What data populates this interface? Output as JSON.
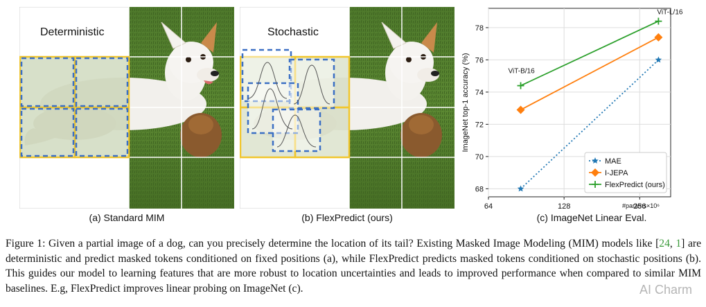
{
  "panel_a": {
    "heading": "Deterministic",
    "caption": "(a) Standard MIM"
  },
  "panel_b": {
    "heading": "Stochastic",
    "caption": "(b) FlexPredict (ours)"
  },
  "panel_c": {
    "caption": "(c) ImageNet Linear Eval."
  },
  "chart_data": {
    "type": "line",
    "ylabel": "ImageNet top-1 accuracy (%)",
    "xlabel": "#params×10⁶",
    "x_ticks": [
      "64",
      "128",
      "256"
    ],
    "x_tick_values": [
      64,
      128,
      256
    ],
    "x_scale": "log",
    "xlim": [
      64,
      340
    ],
    "y_ticks": [
      "68",
      "70",
      "72",
      "74",
      "76",
      "78"
    ],
    "ylim": [
      67.5,
      79.2
    ],
    "grid": true,
    "legend_position": "lower-right",
    "annotations": [
      "ViT-B/16",
      "ViT-L/16"
    ],
    "series": [
      {
        "name": "MAE",
        "color": "#1f77b4",
        "style": "dotted",
        "marker": "star",
        "x": [
          86,
          304
        ],
        "y": [
          68.0,
          76.0
        ]
      },
      {
        "name": "I-JEPA",
        "color": "#ff7f0e",
        "style": "solid",
        "marker": "diamond",
        "x": [
          86,
          304
        ],
        "y": [
          72.9,
          77.4
        ]
      },
      {
        "name": "FlexPredict (ours)",
        "color": "#2ca02c",
        "style": "solid",
        "marker": "plus",
        "x": [
          86,
          304
        ],
        "y": [
          74.4,
          78.4
        ]
      }
    ]
  },
  "figure_caption": {
    "prefix": "Figure 1:",
    "text_1": "Given a partial image of a dog, can you precisely determine the location of its tail? Existing Masked Image Modeling (MIM) models like [",
    "ref_a": "24",
    "ref_sep": ", ",
    "ref_b": "1",
    "text_2": "] are deterministic and predict masked tokens conditioned on fixed positions (a), while FlexPredict predicts masked tokens conditioned on stochastic positions (b). This guides our model to learning features that are more robust to location uncertainties and leads to improved performance when compared to similar MIM baselines. E.g, FlexPredict improves linear probing on ImageNet (c)."
  },
  "watermark": "AI Charm"
}
